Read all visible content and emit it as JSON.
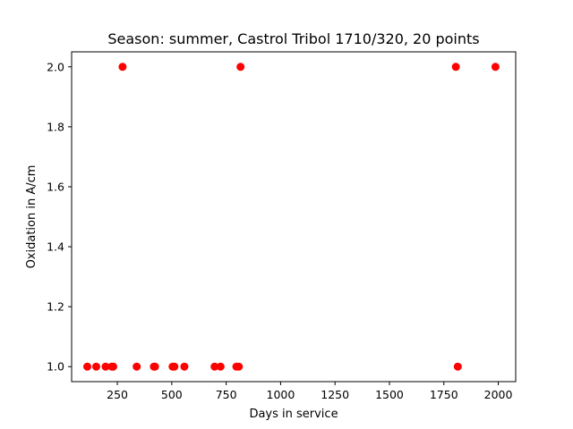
{
  "chart_data": {
    "type": "scatter",
    "title": "Season: summer, Castrol Tribol 1710/320, 20 points",
    "xlabel": "Days in service",
    "ylabel": "Oxidation in A/cm",
    "xlim": [
      40,
      2080
    ],
    "ylim": [
      0.95,
      2.05
    ],
    "xticks": [
      250,
      500,
      750,
      1000,
      1250,
      1500,
      1750,
      2000
    ],
    "yticks": [
      1.0,
      1.2,
      1.4,
      1.6,
      1.8,
      2.0
    ],
    "ytick_labels": [
      "1.0",
      "1.2",
      "1.4",
      "1.6",
      "1.8",
      "2.0"
    ],
    "grid": false,
    "marker_color": "#ff0000",
    "series": [
      {
        "points": [
          {
            "x": 112,
            "y": 1.0
          },
          {
            "x": 153,
            "y": 1.0
          },
          {
            "x": 196,
            "y": 1.0
          },
          {
            "x": 224,
            "y": 1.0
          },
          {
            "x": 274,
            "y": 2.0
          },
          {
            "x": 339,
            "y": 1.0
          },
          {
            "x": 418,
            "y": 1.0
          },
          {
            "x": 423,
            "y": 1.0
          },
          {
            "x": 504,
            "y": 1.0
          },
          {
            "x": 512,
            "y": 1.0
          },
          {
            "x": 558,
            "y": 1.0
          },
          {
            "x": 697,
            "y": 1.0
          },
          {
            "x": 724,
            "y": 1.0
          },
          {
            "x": 797,
            "y": 1.0
          },
          {
            "x": 808,
            "y": 1.0
          },
          {
            "x": 816,
            "y": 2.0
          },
          {
            "x": 1805,
            "y": 2.0
          },
          {
            "x": 1814,
            "y": 1.0
          },
          {
            "x": 1987,
            "y": 2.0
          },
          {
            "x": 231,
            "y": 1.0
          }
        ]
      }
    ]
  }
}
